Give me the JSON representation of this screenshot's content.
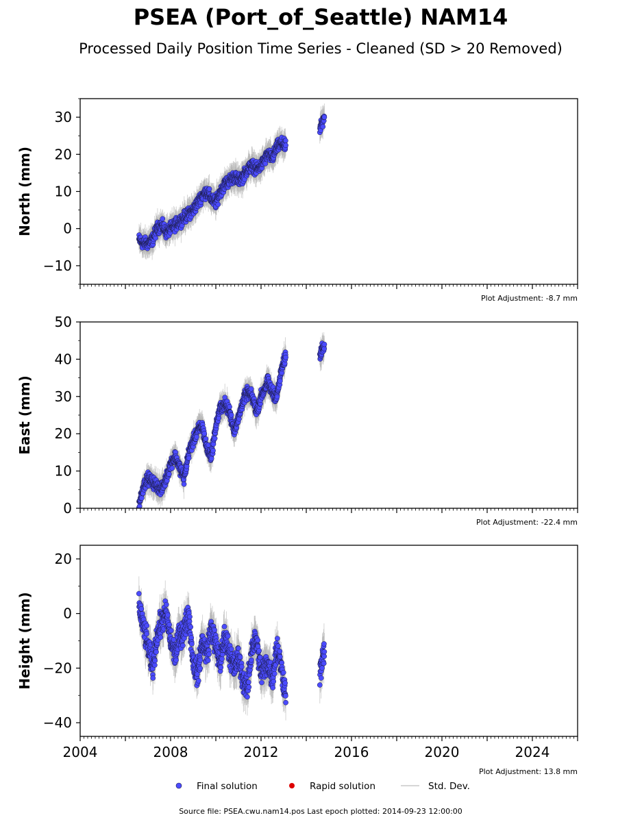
{
  "title": "PSEA (Port_of_Seattle) NAM14",
  "subtitle": "Processed Daily Position Time Series - Cleaned (SD > 20 Removed)",
  "colors": {
    "final": "#4b4bff",
    "rapid": "#dd0000",
    "stddev": "#b4b4b4",
    "edge": "#1a1a40"
  },
  "chart_data": [
    {
      "type": "scatter",
      "ylabel": "North (mm)",
      "ylim": [
        -15,
        35
      ],
      "yticks": [
        -10,
        0,
        10,
        20,
        30
      ],
      "xlim": [
        2004,
        2026
      ],
      "adjustment": "Plot Adjustment: -8.7 mm",
      "series": [
        {
          "name": "Final solution",
          "x": [
            2006.6,
            2006.8,
            2007.0,
            2007.2,
            2007.4,
            2007.6,
            2007.8,
            2008.0,
            2008.2,
            2008.4,
            2008.6,
            2008.8,
            2009.0,
            2009.2,
            2009.4,
            2009.6,
            2009.8,
            2010.0,
            2010.2,
            2010.4,
            2010.6,
            2010.8,
            2011.0,
            2011.2,
            2011.4,
            2011.6,
            2011.8,
            2012.0,
            2012.3,
            2012.5,
            2012.7,
            2012.9,
            2013.1,
            2014.6,
            2014.7,
            2014.8
          ],
          "y": [
            -3,
            -4,
            -4,
            -3,
            0,
            1,
            -1,
            0,
            1,
            2,
            3,
            4,
            5,
            7,
            9,
            10,
            8,
            7,
            10,
            12,
            13,
            14,
            13,
            14,
            16,
            17,
            16,
            17,
            20,
            19,
            22,
            23,
            22,
            27,
            28,
            30
          ]
        },
        {
          "name": "Rapid solution",
          "x": [],
          "y": []
        }
      ]
    },
    {
      "type": "scatter",
      "ylabel": "East (mm)",
      "ylim": [
        0,
        50
      ],
      "yticks": [
        0,
        10,
        20,
        30,
        40,
        50
      ],
      "xlim": [
        2004,
        2026
      ],
      "adjustment": "Plot Adjustment: -22.4 mm",
      "series": [
        {
          "name": "Final solution",
          "x": [
            2006.6,
            2006.8,
            2007.0,
            2007.2,
            2007.4,
            2007.6,
            2007.8,
            2008.0,
            2008.2,
            2008.4,
            2008.6,
            2008.8,
            2009.0,
            2009.2,
            2009.4,
            2009.6,
            2009.8,
            2010.0,
            2010.2,
            2010.4,
            2010.6,
            2010.8,
            2011.0,
            2011.2,
            2011.4,
            2011.6,
            2011.8,
            2012.0,
            2012.3,
            2012.5,
            2012.7,
            2012.9,
            2013.1,
            2014.6,
            2014.7,
            2014.8
          ],
          "y": [
            1,
            6,
            8,
            7,
            6,
            5,
            8,
            12,
            14,
            11,
            8,
            15,
            18,
            21,
            22,
            16,
            14,
            22,
            27,
            28,
            26,
            21,
            24,
            29,
            31,
            30,
            26,
            30,
            34,
            31,
            30,
            37,
            41,
            41,
            43,
            44
          ]
        },
        {
          "name": "Rapid solution",
          "x": [],
          "y": []
        }
      ]
    },
    {
      "type": "scatter",
      "ylabel": "Height (mm)",
      "ylim": [
        -45,
        25
      ],
      "yticks": [
        -40,
        -20,
        0,
        20
      ],
      "xlim": [
        2004,
        2026
      ],
      "xticks": [
        2004,
        2008,
        2012,
        2016,
        2020,
        2024
      ],
      "adjustment": "Plot Adjustment: 13.8 mm",
      "series": [
        {
          "name": "Final solution",
          "x": [
            2006.6,
            2006.8,
            2007.0,
            2007.2,
            2007.4,
            2007.6,
            2007.8,
            2008.0,
            2008.2,
            2008.4,
            2008.6,
            2008.8,
            2009.0,
            2009.2,
            2009.4,
            2009.6,
            2009.8,
            2010.0,
            2010.2,
            2010.4,
            2010.6,
            2010.8,
            2011.0,
            2011.2,
            2011.4,
            2011.6,
            2011.8,
            2012.0,
            2012.3,
            2012.5,
            2012.7,
            2012.9,
            2013.1,
            2014.6,
            2014.7,
            2014.8
          ],
          "y": [
            3,
            -5,
            -12,
            -20,
            -8,
            -3,
            0,
            -10,
            -15,
            -8,
            -6,
            0,
            -18,
            -22,
            -10,
            -15,
            -5,
            -12,
            -18,
            -8,
            -14,
            -20,
            -16,
            -24,
            -28,
            -12,
            -10,
            -22,
            -18,
            -24,
            -12,
            -20,
            -30,
            -22,
            -18,
            -14
          ]
        },
        {
          "name": "Rapid solution",
          "x": [],
          "y": []
        }
      ]
    }
  ],
  "legend": {
    "final": "Final solution",
    "rapid": "Rapid solution",
    "stddev": "Std. Dev."
  },
  "footer": "Source file: PSEA.cwu.nam14.pos  Last epoch plotted: 2014-09-23 12:00:00"
}
